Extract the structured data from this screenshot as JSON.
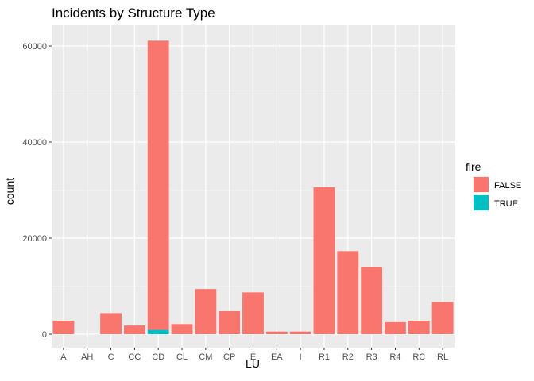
{
  "chart_data": {
    "type": "bar",
    "stacked": true,
    "title": "Incidents by Structure Type",
    "xlabel": "LU",
    "ylabel": "count",
    "categories": [
      "A",
      "AH",
      "C",
      "CC",
      "CD",
      "CL",
      "CM",
      "CP",
      "E",
      "EA",
      "I",
      "R1",
      "R2",
      "R3",
      "R4",
      "RC",
      "RL"
    ],
    "series": [
      {
        "name": "FALSE",
        "color": "#F8766D",
        "values": [
          2800,
          0,
          4400,
          1800,
          60200,
          2100,
          9400,
          4800,
          8700,
          550,
          550,
          30600,
          17300,
          14000,
          2500,
          2800,
          6700
        ]
      },
      {
        "name": "TRUE",
        "color": "#00BFC4",
        "values": [
          0,
          0,
          0,
          0,
          900,
          0,
          0,
          0,
          0,
          0,
          0,
          0,
          0,
          0,
          0,
          0,
          0
        ]
      }
    ],
    "yticks": [
      0,
      20000,
      40000,
      60000
    ],
    "ylim": [
      -3000,
      64000
    ],
    "grid": true,
    "legend": {
      "title": "fire",
      "position": "right",
      "entries": [
        "FALSE",
        "TRUE"
      ]
    },
    "panel_background": "#EBEBEB"
  }
}
